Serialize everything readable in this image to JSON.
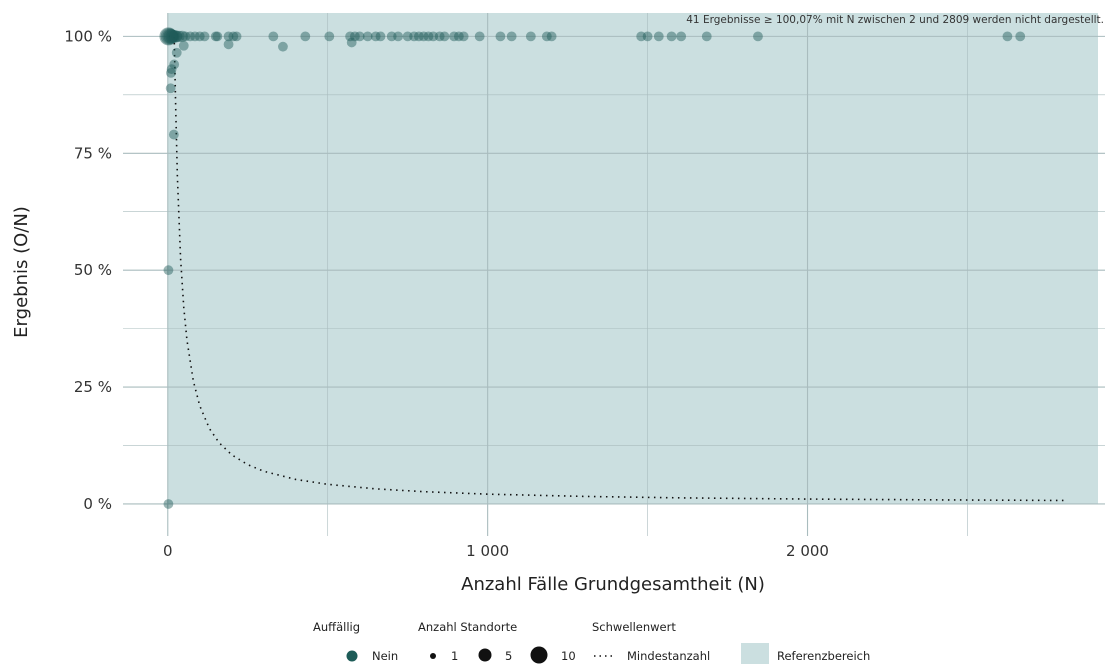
{
  "chart_data": {
    "type": "scatter",
    "title": "",
    "xlabel": "Anzahl Fälle Grundgesamtheit (N)",
    "ylabel": "Ergebnis (O/N)",
    "xlim": [
      -140,
      2930
    ],
    "ylim": [
      -0.03,
      1.05
    ],
    "x_ticks": [
      0,
      1000,
      2000
    ],
    "x_tick_labels": [
      "0",
      "1 000",
      "2 000"
    ],
    "y_ticks": [
      0,
      0.25,
      0.5,
      0.75,
      1.0
    ],
    "y_tick_labels": [
      "0 %",
      "25 %",
      "50 %",
      "75 %",
      "100 %"
    ],
    "grid": true,
    "annotation": "41 Ergebnisse ≥ 100,07% mit N zwischen 2 und 2809 werden nicht dargestellt.",
    "reference_area": {
      "x": [
        0,
        2930
      ],
      "y": [
        0,
        1.05
      ],
      "color": "#cbdfe0"
    },
    "colors": {
      "point": "#1e5c58",
      "threshold_line": "#111111",
      "grid": "#a9bcbe"
    },
    "threshold": {
      "name": "Mindestanzahl",
      "x": [
        3,
        5,
        8,
        12,
        16,
        20,
        25,
        30,
        40,
        50,
        60,
        80,
        100,
        130,
        160,
        200,
        250,
        300,
        400,
        500,
        650,
        800,
        1000,
        1300,
        1600,
        2000,
        2400,
        2809
      ],
      "y": [
        1.0,
        1.0,
        1.0,
        1.0,
        1.0,
        1.0,
        0.84,
        0.7,
        0.525,
        0.42,
        0.35,
        0.2625,
        0.21,
        0.1615,
        0.1313,
        0.105,
        0.084,
        0.07,
        0.0525,
        0.042,
        0.0323,
        0.0263,
        0.021,
        0.0162,
        0.0131,
        0.0105,
        0.0088,
        0.0075
      ]
    },
    "series": [
      {
        "name": "Nein",
        "points": [
          {
            "x": 2,
            "y": 1.0,
            "n": 10
          },
          {
            "x": 4,
            "y": 1.0,
            "n": 8
          },
          {
            "x": 7,
            "y": 1.0,
            "n": 6
          },
          {
            "x": 10,
            "y": 1.0,
            "n": 5
          },
          {
            "x": 14,
            "y": 1.0,
            "n": 4
          },
          {
            "x": 18,
            "y": 1.0,
            "n": 3
          },
          {
            "x": 23,
            "y": 1.0,
            "n": 3
          },
          {
            "x": 28,
            "y": 1.0,
            "n": 2
          },
          {
            "x": 35,
            "y": 1.0,
            "n": 2
          },
          {
            "x": 45,
            "y": 1.0,
            "n": 2
          },
          {
            "x": 55,
            "y": 1.0,
            "n": 1
          },
          {
            "x": 70,
            "y": 1.0,
            "n": 1
          },
          {
            "x": 85,
            "y": 1.0,
            "n": 1
          },
          {
            "x": 100,
            "y": 1.0,
            "n": 1
          },
          {
            "x": 115,
            "y": 1.0,
            "n": 1
          },
          {
            "x": 150,
            "y": 1.0,
            "n": 1
          },
          {
            "x": 155,
            "y": 1.0,
            "n": 1
          },
          {
            "x": 190,
            "y": 1.0,
            "n": 1
          },
          {
            "x": 205,
            "y": 1.0,
            "n": 1
          },
          {
            "x": 215,
            "y": 1.0,
            "n": 1
          },
          {
            "x": 330,
            "y": 1.0,
            "n": 1
          },
          {
            "x": 430,
            "y": 1.0,
            "n": 1
          },
          {
            "x": 505,
            "y": 1.0,
            "n": 1
          },
          {
            "x": 570,
            "y": 1.0,
            "n": 1
          },
          {
            "x": 585,
            "y": 1.0,
            "n": 1
          },
          {
            "x": 600,
            "y": 1.0,
            "n": 1
          },
          {
            "x": 625,
            "y": 1.0,
            "n": 1
          },
          {
            "x": 650,
            "y": 1.0,
            "n": 1
          },
          {
            "x": 665,
            "y": 1.0,
            "n": 1
          },
          {
            "x": 700,
            "y": 1.0,
            "n": 1
          },
          {
            "x": 720,
            "y": 1.0,
            "n": 1
          },
          {
            "x": 750,
            "y": 1.0,
            "n": 1
          },
          {
            "x": 770,
            "y": 1.0,
            "n": 1
          },
          {
            "x": 785,
            "y": 1.0,
            "n": 1
          },
          {
            "x": 800,
            "y": 1.0,
            "n": 1
          },
          {
            "x": 815,
            "y": 1.0,
            "n": 1
          },
          {
            "x": 830,
            "y": 1.0,
            "n": 1
          },
          {
            "x": 850,
            "y": 1.0,
            "n": 1
          },
          {
            "x": 865,
            "y": 1.0,
            "n": 1
          },
          {
            "x": 895,
            "y": 1.0,
            "n": 1
          },
          {
            "x": 910,
            "y": 1.0,
            "n": 1
          },
          {
            "x": 925,
            "y": 1.0,
            "n": 1
          },
          {
            "x": 975,
            "y": 1.0,
            "n": 1
          },
          {
            "x": 1040,
            "y": 1.0,
            "n": 1
          },
          {
            "x": 1075,
            "y": 1.0,
            "n": 1
          },
          {
            "x": 1135,
            "y": 1.0,
            "n": 1
          },
          {
            "x": 1185,
            "y": 1.0,
            "n": 1
          },
          {
            "x": 1200,
            "y": 1.0,
            "n": 1
          },
          {
            "x": 1480,
            "y": 1.0,
            "n": 1
          },
          {
            "x": 1500,
            "y": 1.0,
            "n": 1
          },
          {
            "x": 1535,
            "y": 1.0,
            "n": 1
          },
          {
            "x": 1575,
            "y": 1.0,
            "n": 1
          },
          {
            "x": 1605,
            "y": 1.0,
            "n": 1
          },
          {
            "x": 1685,
            "y": 1.0,
            "n": 1
          },
          {
            "x": 1845,
            "y": 1.0,
            "n": 1
          },
          {
            "x": 2625,
            "y": 1.0,
            "n": 1
          },
          {
            "x": 2665,
            "y": 1.0,
            "n": 1
          },
          {
            "x": 190,
            "y": 0.983,
            "n": 1
          },
          {
            "x": 360,
            "y": 0.978,
            "n": 1
          },
          {
            "x": 575,
            "y": 0.987,
            "n": 1
          },
          {
            "x": 50,
            "y": 0.98,
            "n": 1
          },
          {
            "x": 28,
            "y": 0.965,
            "n": 1
          },
          {
            "x": 20,
            "y": 0.94,
            "n": 1
          },
          {
            "x": 12,
            "y": 0.93,
            "n": 1
          },
          {
            "x": 10,
            "y": 0.922,
            "n": 1
          },
          {
            "x": 9,
            "y": 0.889,
            "n": 1
          },
          {
            "x": 19,
            "y": 0.79,
            "n": 1
          },
          {
            "x": 2,
            "y": 0.5,
            "n": 1
          },
          {
            "x": 2,
            "y": 0.0,
            "n": 1
          }
        ]
      }
    ],
    "legend": {
      "position": "bottom",
      "auffaellig": {
        "title": "Auffällig",
        "label": "Nein"
      },
      "standorte": {
        "title": "Anzahl Standorte",
        "labels": [
          "1",
          "5",
          "10"
        ]
      },
      "schwellenwert": {
        "title": "Schwellenwert",
        "label": "Mindestanzahl"
      },
      "referenz": {
        "label": "Referenzbereich"
      }
    }
  }
}
